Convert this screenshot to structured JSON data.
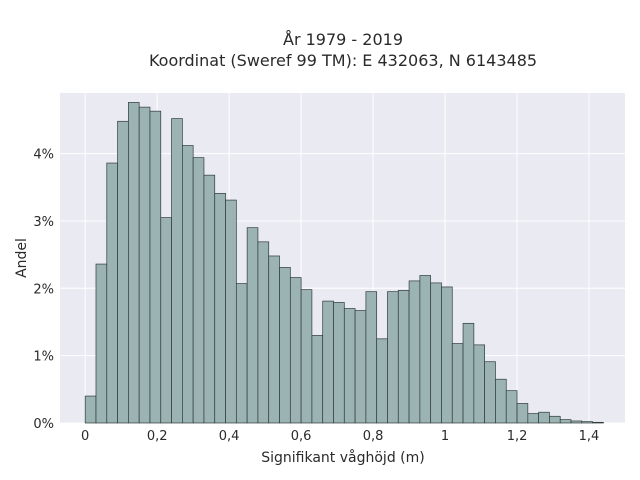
{
  "chart_data": {
    "type": "bar",
    "title": "År 1979 - 2019",
    "subtitle": "Koordinat (Sweref 99 TM): E 432063, N 6143485",
    "xlabel": "Signifikant våghöjd (m)",
    "ylabel": "Andel",
    "bin_width": 0.03,
    "bin_start": 0,
    "xlim": [
      -0.07,
      1.5
    ],
    "ylim": [
      0,
      0.049
    ],
    "x_ticks": [
      0,
      0.2,
      0.4,
      0.6,
      0.8,
      1.0,
      1.2,
      1.4
    ],
    "x_tick_labels": [
      "0",
      "0,2",
      "0,4",
      "0,6",
      "0,8",
      "1",
      "1,2",
      "1,4"
    ],
    "y_ticks": [
      0,
      0.01,
      0.02,
      0.03,
      0.04
    ],
    "y_tick_labels": [
      "0%",
      "1%",
      "2%",
      "3%",
      "4%"
    ],
    "grid": true,
    "values": [
      0.004,
      0.0236,
      0.0386,
      0.0448,
      0.0476,
      0.0469,
      0.0463,
      0.0305,
      0.0452,
      0.0412,
      0.0394,
      0.0368,
      0.0341,
      0.0331,
      0.0207,
      0.029,
      0.0269,
      0.0248,
      0.0231,
      0.0216,
      0.0198,
      0.013,
      0.0181,
      0.0179,
      0.017,
      0.0167,
      0.0195,
      0.0125,
      0.0195,
      0.0197,
      0.0211,
      0.0219,
      0.0208,
      0.0202,
      0.0118,
      0.0148,
      0.0116,
      0.0091,
      0.0065,
      0.0048,
      0.0029,
      0.0014,
      0.0016,
      0.001,
      0.0005,
      0.0003,
      0.0002,
      0.0001
    ]
  }
}
